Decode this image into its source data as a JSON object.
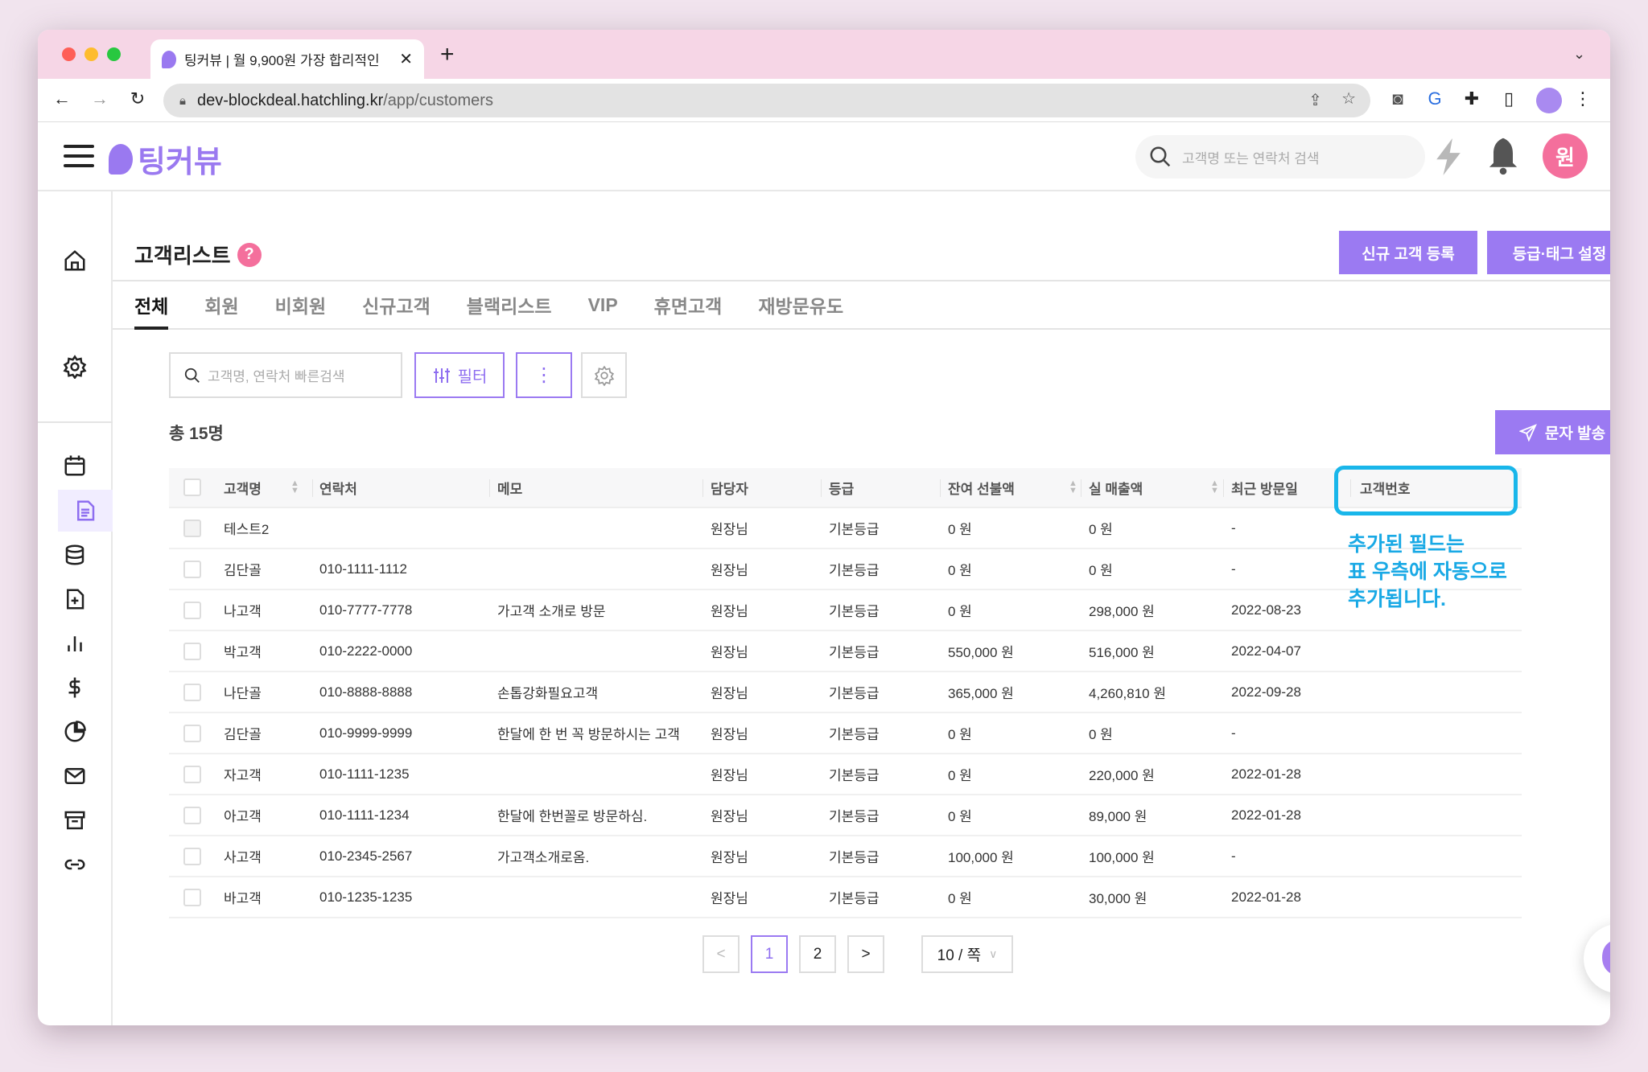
{
  "browser": {
    "tab_title": "팅커뷰 | 월 9,900원 가장 합리적인",
    "url_host": "dev-blockdeal.hatchling.kr",
    "url_path": "/app/customers"
  },
  "app": {
    "logo_text": "팅커뷰",
    "search_placeholder": "고객명 또는 연락처 검색",
    "avatar_initial": "원",
    "brand_color": "#9b7af2"
  },
  "sidebar": {
    "items": [
      {
        "icon": "home-icon"
      },
      {
        "icon": "gear-icon"
      },
      {
        "icon": "calendar-icon"
      },
      {
        "icon": "document-icon",
        "active": true
      },
      {
        "icon": "database-icon"
      },
      {
        "icon": "file-plus-icon"
      },
      {
        "icon": "bar-chart-icon"
      },
      {
        "icon": "dollar-icon"
      },
      {
        "icon": "pie-chart-icon"
      },
      {
        "icon": "mail-icon"
      },
      {
        "icon": "archive-icon"
      },
      {
        "icon": "link-icon"
      }
    ]
  },
  "page": {
    "title": "고객리스트",
    "help": "?",
    "new_customer_btn": "신규 고객 등록",
    "grade_tag_btn": "등급·태그 설정",
    "tabs": [
      "전체",
      "회원",
      "비회원",
      "신규고객",
      "블랙리스트",
      "VIP",
      "휴면고객",
      "재방문유도"
    ],
    "active_tab": "전체",
    "quick_search_placeholder": "고객명, 연락처 빠른검색",
    "filter_label": "필터",
    "total_label": "총 15명",
    "sms_btn": "문자 발송"
  },
  "table": {
    "columns": [
      "고객명",
      "연락처",
      "메모",
      "담당자",
      "등급",
      "잔여 선불액",
      "실 매출액",
      "최근 방문일",
      "고객번호"
    ],
    "rows": [
      [
        "테스트2",
        "",
        "",
        "원장님",
        "기본등급",
        "0 원",
        "0 원",
        "-",
        ""
      ],
      [
        "김단골",
        "010-1111-1112",
        "",
        "원장님",
        "기본등급",
        "0 원",
        "0 원",
        "-",
        ""
      ],
      [
        "나고객",
        "010-7777-7778",
        "가고객 소개로 방문",
        "원장님",
        "기본등급",
        "0 원",
        "298,000 원",
        "2022-08-23",
        ""
      ],
      [
        "박고객",
        "010-2222-0000",
        "",
        "원장님",
        "기본등급",
        "550,000 원",
        "516,000 원",
        "2022-04-07",
        ""
      ],
      [
        "나단골",
        "010-8888-8888",
        "손톱강화필요고객",
        "원장님",
        "기본등급",
        "365,000 원",
        "4,260,810 원",
        "2022-09-28",
        ""
      ],
      [
        "김단골",
        "010-9999-9999",
        "한달에 한 번 꼭 방문하시는 고객",
        "원장님",
        "기본등급",
        "0 원",
        "0 원",
        "-",
        ""
      ],
      [
        "자고객",
        "010-1111-1235",
        "",
        "원장님",
        "기본등급",
        "0 원",
        "220,000 원",
        "2022-01-28",
        ""
      ],
      [
        "아고객",
        "010-1111-1234",
        "한달에 한번꼴로 방문하심.",
        "원장님",
        "기본등급",
        "0 원",
        "89,000 원",
        "2022-01-28",
        ""
      ],
      [
        "사고객",
        "010-2345-2567",
        "가고객소개로옴.",
        "원장님",
        "기본등급",
        "100,000 원",
        "100,000 원",
        "-",
        ""
      ],
      [
        "바고객",
        "010-1235-1235",
        "",
        "원장님",
        "기본등급",
        "0 원",
        "30,000 원",
        "2022-01-28",
        ""
      ]
    ]
  },
  "annotation": {
    "lines": [
      "추가된 필드는",
      "표 우측에 자동으로",
      "추가됩니다."
    ],
    "color": "#19b6ea"
  },
  "pagination": {
    "prev": "<",
    "pages": [
      "1",
      "2"
    ],
    "current": "1",
    "next": ">",
    "page_size": "10 / 쪽"
  }
}
